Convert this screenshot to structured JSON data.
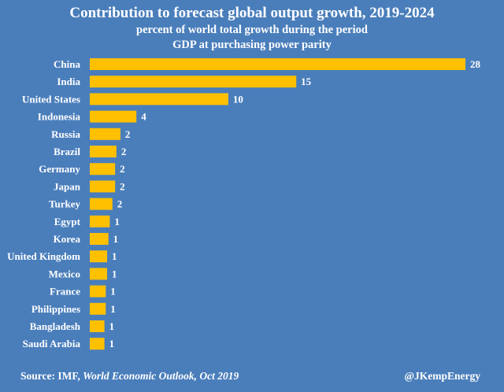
{
  "title": "Contribution to forecast global output growth, 2019-2024",
  "subtitle1": "percent of world total growth during the period",
  "subtitle2": "GDP at purchasing power parity",
  "colors": {
    "background": "#4a7ebb",
    "bar": "#ffc000",
    "text": "#ffffff"
  },
  "chart_data": {
    "type": "bar",
    "orientation": "horizontal",
    "title": "Contribution to forecast global output growth, 2019-2024",
    "subtitle": "percent of world total growth during the period; GDP at purchasing power parity",
    "categories": [
      "China",
      "India",
      "United States",
      "Indonesia",
      "Russia",
      "Brazil",
      "Germany",
      "Japan",
      "Turkey",
      "Egypt",
      "Korea",
      "United Kingdom",
      "Mexico",
      "France",
      "Philippines",
      "Bangladesh",
      "Saudi Arabia"
    ],
    "values": [
      28,
      15,
      10,
      4,
      2,
      2,
      2,
      2,
      2,
      1,
      1,
      1,
      1,
      1,
      1,
      1,
      1
    ],
    "plotted_values": [
      28.2,
      15.5,
      10.4,
      3.5,
      2.3,
      2.0,
      1.9,
      1.9,
      1.7,
      1.5,
      1.4,
      1.3,
      1.3,
      1.2,
      1.2,
      1.1,
      1.1
    ],
    "xlim": [
      0,
      28.2
    ],
    "xlabel": "",
    "ylabel": "",
    "grid": false,
    "legend": "none"
  },
  "footer": {
    "source_prefix": "Source: IMF, ",
    "source_italic": "World Economic Outlook, Oct 2019",
    "credit": "@JKempEnergy"
  }
}
